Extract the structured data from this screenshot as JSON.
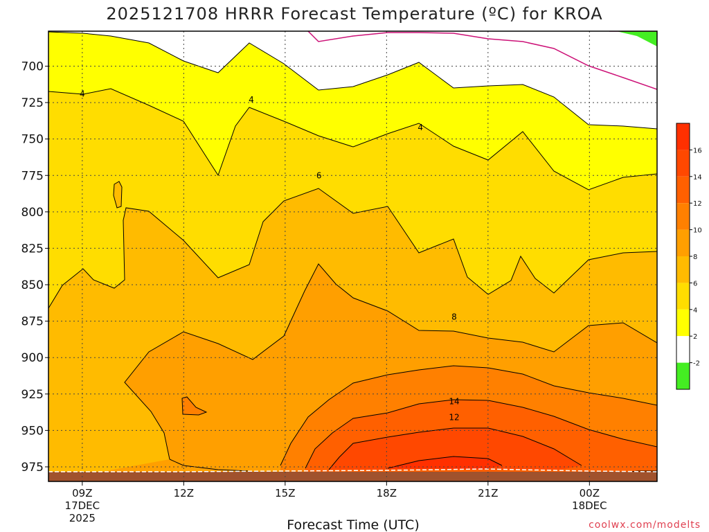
{
  "chart_data": {
    "type": "contour",
    "title": "2025121708 HRRR Forecast Temperature (ºC) for KROA",
    "xlabel": "Forecast Time (UTC)",
    "ylabel": "",
    "ylim": [
      985,
      676
    ],
    "x_ticks": [
      {
        "label": "09Z",
        "date": "17DEC",
        "year": "2025"
      },
      {
        "label": "12Z",
        "date": "",
        "year": ""
      },
      {
        "label": "15Z",
        "date": "",
        "year": ""
      },
      {
        "label": "18Z",
        "date": "",
        "year": ""
      },
      {
        "label": "21Z",
        "date": "",
        "year": ""
      },
      {
        "label": "00Z",
        "date": "18DEC",
        "year": ""
      }
    ],
    "y_ticks": [
      700,
      725,
      750,
      775,
      800,
      825,
      850,
      875,
      900,
      925,
      950,
      975
    ],
    "contour_labels": [
      {
        "value": "4",
        "time": 9.0,
        "pressure": 719
      },
      {
        "value": "4",
        "time": 14.0,
        "pressure": 723
      },
      {
        "value": "4",
        "time": 19.0,
        "pressure": 742
      },
      {
        "value": "6",
        "time": 16.0,
        "pressure": 775
      },
      {
        "value": "8",
        "time": 20.0,
        "pressure": 872
      },
      {
        "value": "12",
        "time": 20.0,
        "pressure": 941
      },
      {
        "value": "14",
        "time": 20.0,
        "pressure": 930
      }
    ],
    "colorbar": {
      "levels": [
        -2,
        2,
        4,
        6,
        8,
        10,
        12,
        14,
        16
      ],
      "colors": [
        "#44ee22",
        "#ffffff",
        "#ffff00",
        "#ffdd00",
        "#ffbb00",
        "#ff9f00",
        "#ff8000",
        "#ff6000",
        "#ff4800",
        "#ff3000"
      ]
    },
    "ground_color": "#a0522d"
  },
  "credit": "coolwx.com/modelts"
}
